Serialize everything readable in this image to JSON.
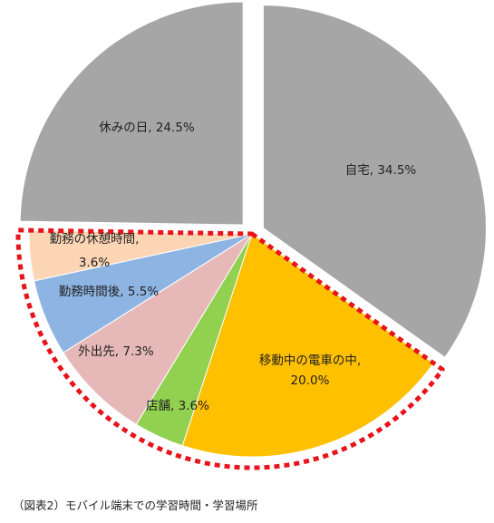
{
  "caption": "（図表2）モバイル端末での学習時間・学習場所",
  "chart_data": {
    "type": "pie",
    "title": "",
    "highlight_style": "red-dotted-outline",
    "slices": [
      {
        "label": "自宅",
        "value": 34.5,
        "value_label": "34.5%",
        "color": "#a6a6a6",
        "exploded": true,
        "highlighted": false
      },
      {
        "label": "移動中の電車の中",
        "value": 20.0,
        "value_label": "20.0%",
        "color": "#ffc000",
        "exploded": false,
        "highlighted": true
      },
      {
        "label": "店舗",
        "value": 3.6,
        "value_label": "3.6%",
        "color": "#92d050",
        "exploded": false,
        "highlighted": true
      },
      {
        "label": "外出先",
        "value": 7.3,
        "value_label": "7.3%",
        "color": "#e6b9b8",
        "exploded": false,
        "highlighted": true
      },
      {
        "label": "勤務時間後",
        "value": 5.5,
        "value_label": "5.5%",
        "color": "#8db4e2",
        "exploded": false,
        "highlighted": true
      },
      {
        "label": "勤務の休憩時間",
        "value": 3.6,
        "value_label": "3.6%",
        "color": "#fcd5b4",
        "exploded": false,
        "highlighted": true
      },
      {
        "label": "休みの日",
        "value": 24.5,
        "value_label": "24.5%",
        "color": "#a6a6a6",
        "exploded": true,
        "highlighted": false
      }
    ]
  }
}
